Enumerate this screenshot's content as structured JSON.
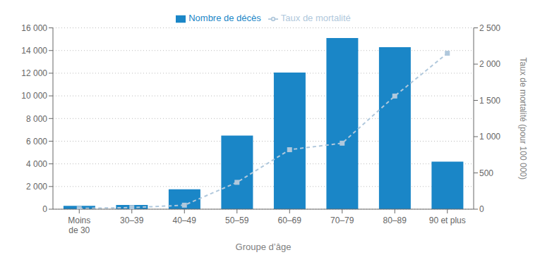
{
  "chart_data": {
    "type": "bar",
    "xlabel": "Groupe d’âge",
    "y2label": "Taux de mortalité (pour 100 000)",
    "categories": [
      "Moins\nde 30",
      "30–39",
      "40–49",
      "50–59",
      "60–69",
      "70–79",
      "80–89",
      "90 et plus"
    ],
    "series": [
      {
        "name": "Nombre de décès",
        "type": "bar",
        "color": "#1a86c7",
        "values": [
          300,
          380,
          1750,
          6500,
          12050,
          15100,
          14300,
          4200
        ]
      },
      {
        "name": "Taux de mortalité",
        "type": "line",
        "axis": "y2",
        "color": "#b0c8dc",
        "line_style": "dashed",
        "marker": "square",
        "values": [
          10,
          22,
          55,
          370,
          820,
          910,
          1560,
          2150
        ]
      }
    ],
    "ylim": [
      0,
      16000
    ],
    "yticks": [
      0,
      {
        "value": 2000,
        "label": "2 000"
      },
      {
        "value": 4000,
        "label": "4 000"
      },
      {
        "value": 6000,
        "label": "6 000"
      },
      {
        "value": 8000,
        "label": "8 000"
      },
      {
        "value": 10000,
        "label": "10 000"
      },
      {
        "value": 12000,
        "label": "12 000"
      },
      {
        "value": 14000,
        "label": "14 000"
      },
      {
        "value": 16000,
        "label": "16 000"
      }
    ],
    "y2lim": [
      0,
      2500
    ],
    "y2ticks": [
      0,
      500,
      {
        "value": 1000,
        "label": "1 000"
      },
      {
        "value": 1500,
        "label": "1 500"
      },
      {
        "value": 2000,
        "label": "2 000"
      },
      {
        "value": 2500,
        "label": "2 500"
      }
    ],
    "grid": true,
    "legend": "top"
  }
}
